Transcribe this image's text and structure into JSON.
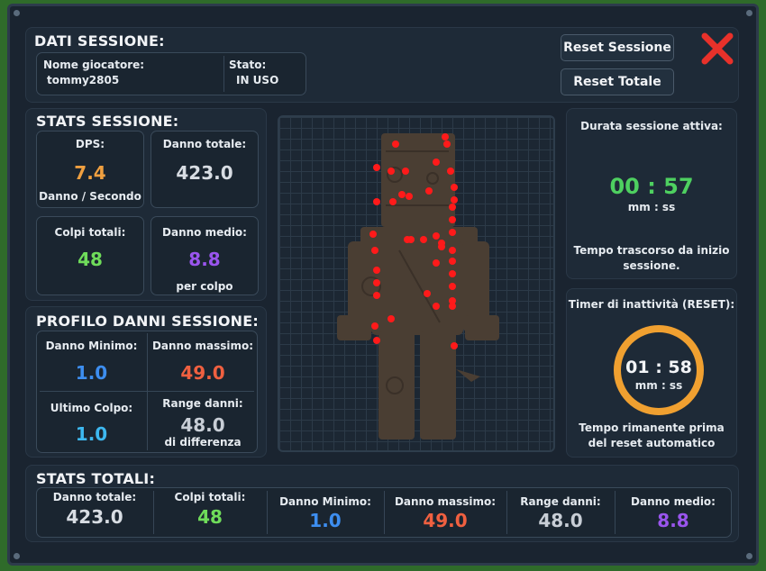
{
  "session": {
    "title": "DATI SESSIONE:",
    "player_label": "Nome giocatore:",
    "player_value": "tommy2805",
    "state_label": "Stato:",
    "state_value": "IN USO",
    "reset_session_label": "Reset Sessione",
    "reset_total_label": "Reset Totale"
  },
  "stats_session": {
    "title": "STATS SESSIONE:",
    "dps_label": "DPS:",
    "dps_value": "7.4",
    "dps_sub": "Danno / Secondo",
    "total_damage_label": "Danno totale:",
    "total_damage_value": "423.0",
    "hits_label": "Colpi totali:",
    "hits_value": "48",
    "avg_label": "Danno medio:",
    "avg_value": "8.8",
    "avg_sub": "per colpo"
  },
  "profile": {
    "title": "PROFILO DANNI SESSIONE:",
    "min_label": "Danno Minimo:",
    "min_value": "1.0",
    "max_label": "Danno massimo:",
    "max_value": "49.0",
    "last_label": "Ultimo Colpo:",
    "last_value": "1.0",
    "range_label": "Range danni:",
    "range_value": "48.0",
    "range_sub": "di differenza"
  },
  "duration": {
    "label": "Durata sessione attiva:",
    "time": "00 : 57",
    "unit": "mm : ss",
    "desc": "Tempo trascorso da inizio sessione."
  },
  "inactivity": {
    "label": "Timer di inattività (RESET):",
    "time": "01 : 58",
    "unit": "mm : ss",
    "desc": "Tempo rimanente prima del reset automatico",
    "progress": 1.0
  },
  "totals": {
    "title": "STATS TOTALI:",
    "items": [
      {
        "label": "Danno totale:",
        "value": "423.0"
      },
      {
        "label": "Colpi totali:",
        "value": "48"
      },
      {
        "label": "Danno Minimo:",
        "value": "1.0"
      },
      {
        "label": "Danno massimo:",
        "value": "49.0"
      },
      {
        "label": "Range danni:",
        "value": "48.0"
      },
      {
        "label": "Danno medio:",
        "value": "8.8"
      }
    ]
  },
  "colors": {
    "dps": "#f0a040",
    "total": "#d8dde3",
    "hits": "#6fdc5a",
    "avg": "#9a55ee",
    "min": "#3d8ef0",
    "max": "#f06040",
    "last": "#3db8f0",
    "range": "#c8ced6",
    "timer_green": "#4ed060",
    "ring": "#f0a030",
    "close": "#e8312a",
    "hit": "#ff1a1a"
  },
  "icons": {
    "close": "close-x-icon",
    "dummy": "training-dummy-icon"
  }
}
